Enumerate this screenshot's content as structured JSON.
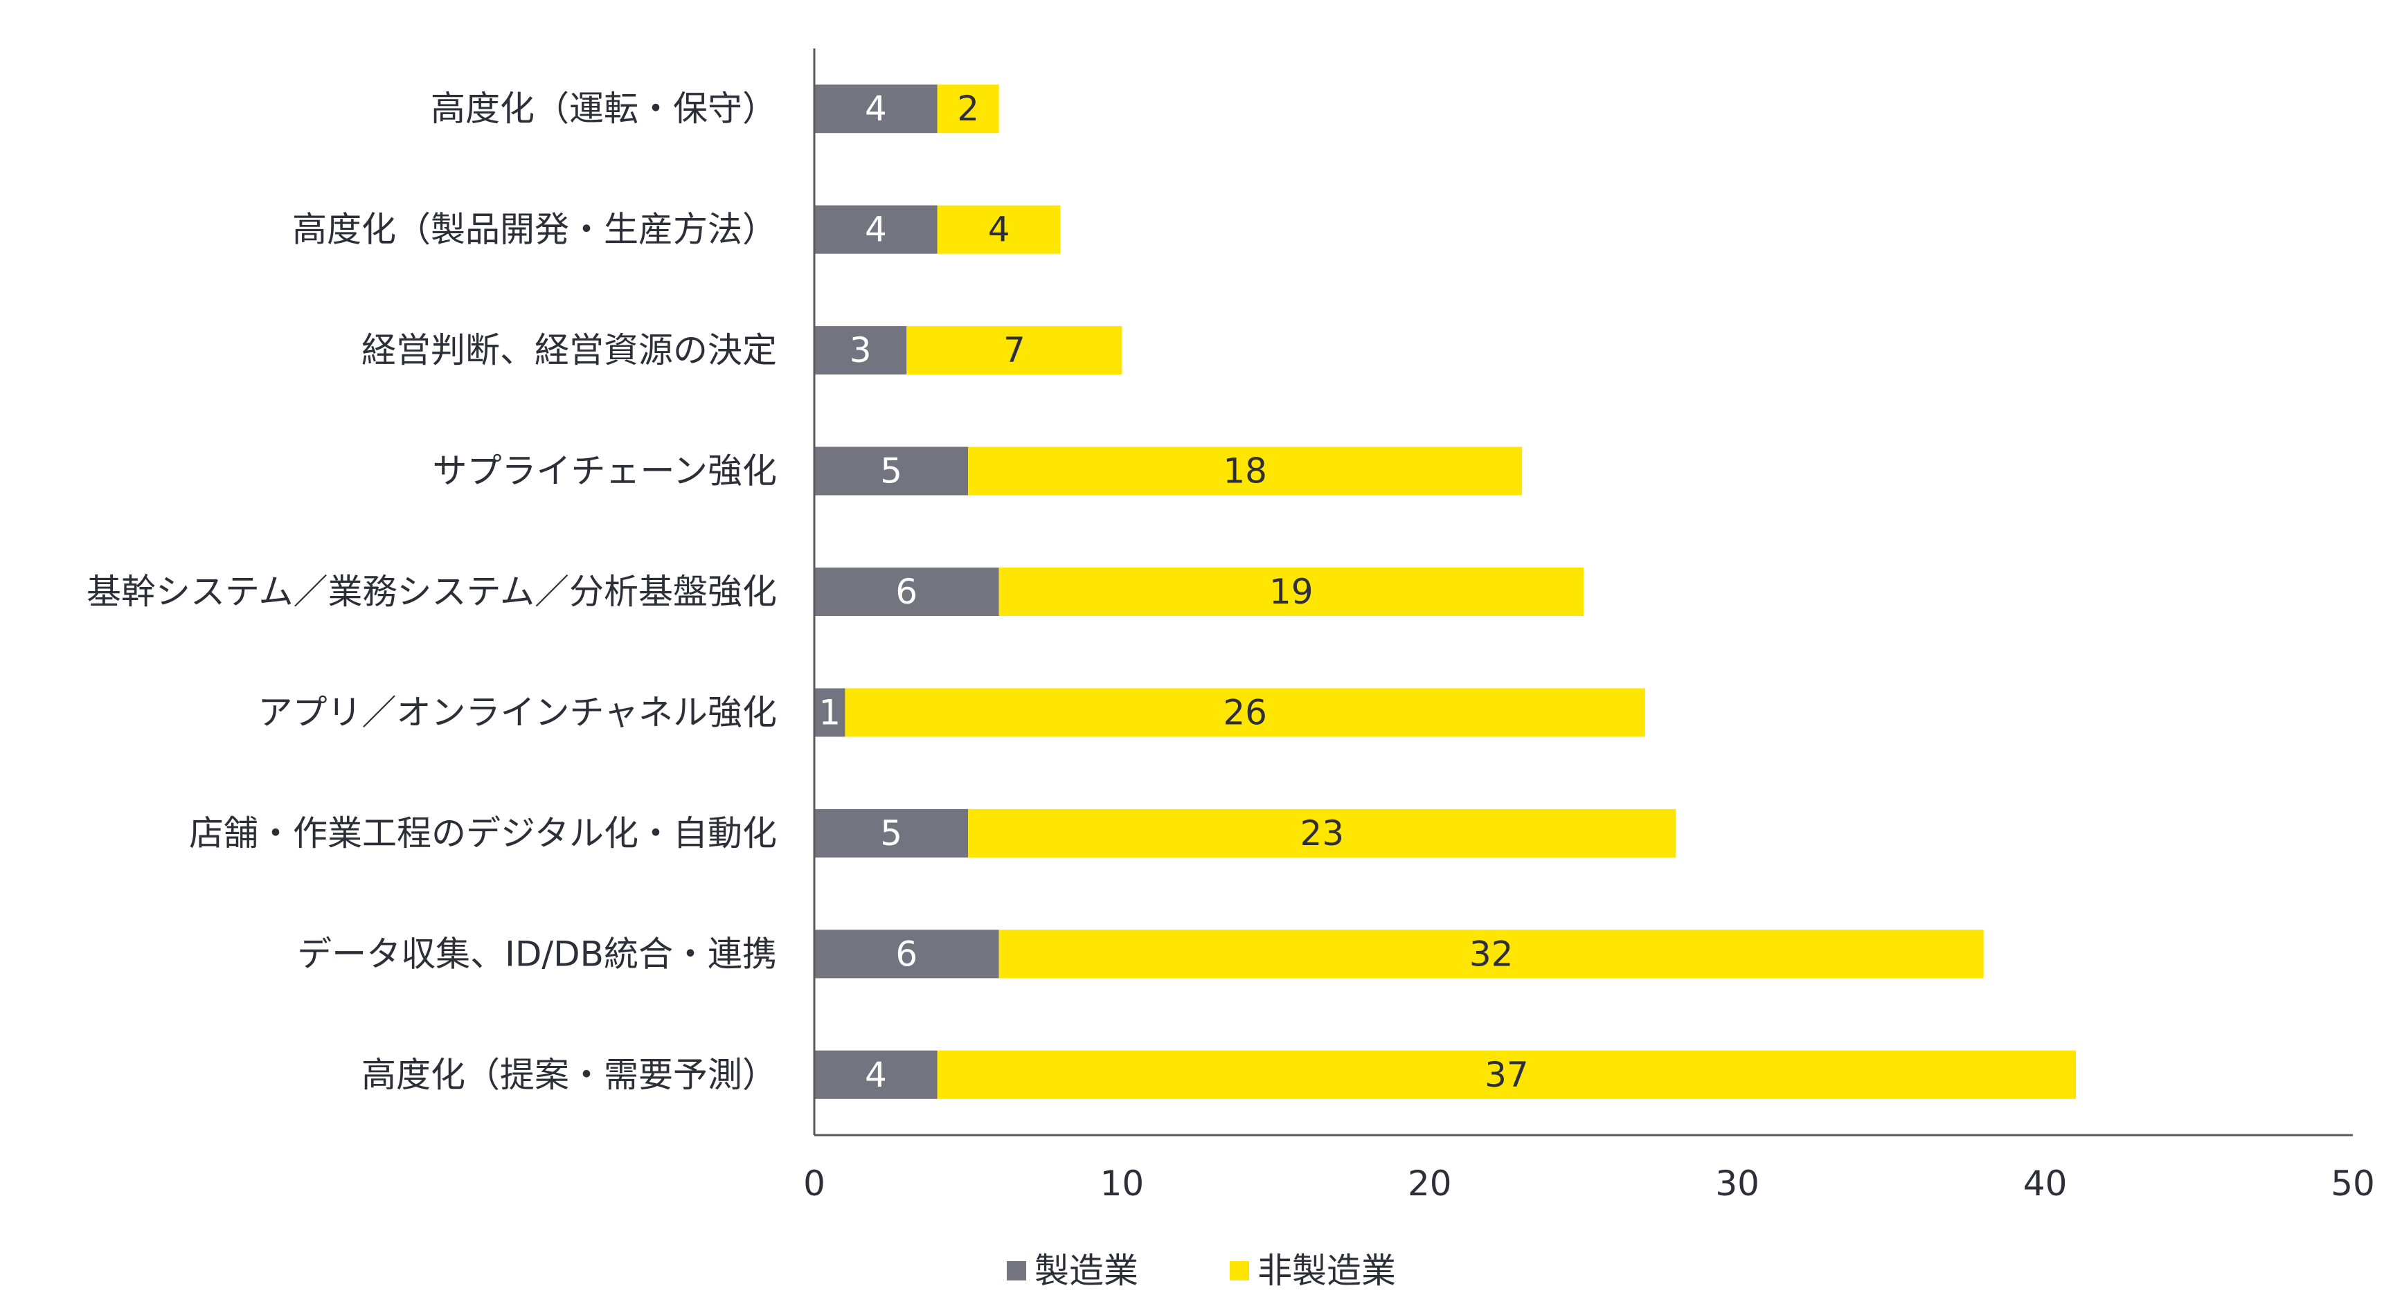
{
  "chart_data": {
    "type": "bar",
    "orientation": "horizontal",
    "stacked": true,
    "categories": [
      "高度化（運転・保守）",
      "高度化（製品開発・生産方法）",
      "経営判断、経営資源の決定",
      "サプライチェーン強化",
      "基幹システム／業務システム／分析基盤強化",
      "アプリ／オンラインチャネル強化",
      "店舗・作業工程のデジタル化・自動化",
      "データ収集、ID/DB統合・連携",
      "高度化（提案・需要予測）"
    ],
    "series": [
      {
        "name": "製造業",
        "color": "#747480",
        "label_color": "#ffffff",
        "values": [
          4,
          4,
          3,
          5,
          6,
          1,
          5,
          6,
          4
        ]
      },
      {
        "name": "非製造業",
        "color": "#ffe600",
        "label_color": "#2e2e38",
        "values": [
          2,
          4,
          7,
          18,
          19,
          26,
          23,
          32,
          37
        ]
      }
    ],
    "xlim": [
      0,
      50
    ],
    "xticks": [
      0,
      10,
      20,
      30,
      40,
      50
    ],
    "grid": false,
    "legend_position": "bottom-center",
    "axis_color": "#595959",
    "text_color": "#2e2e38"
  }
}
